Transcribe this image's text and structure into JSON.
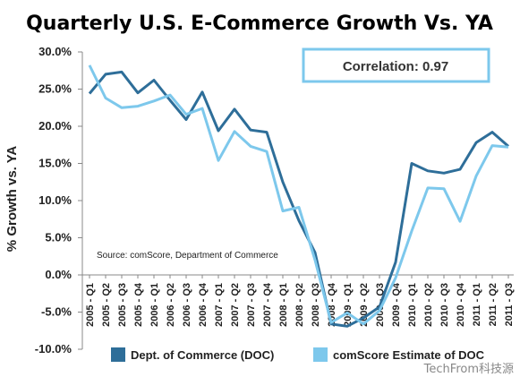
{
  "watermark": "TechFrom科技源",
  "chart_data": {
    "type": "line",
    "title": "Quarterly U.S. E-Commerce Growth Vs. YA",
    "ylabel": "% Growth vs. YA",
    "xlabel": "",
    "ylim": [
      -10,
      30
    ],
    "yticks": [
      "30.0%",
      "25.0%",
      "20.0%",
      "15.0%",
      "10.0%",
      "5.0%",
      "0.0%",
      "-5.0%",
      "-10.0%"
    ],
    "annotation": "Correlation: 0.97",
    "source": "Source: comScore, Department of Commerce",
    "legend_position": "bottom",
    "categories": [
      "2005 - Q1",
      "2005 - Q2",
      "2005 - Q3",
      "2005 - Q4",
      "2006 - Q1",
      "2006 - Q2",
      "2006 - Q3",
      "2006 - Q4",
      "2007 - Q1",
      "2007 - Q2",
      "2007 - Q3",
      "2007 - Q4",
      "2008 - Q1",
      "2008 - Q2",
      "2008 - Q3",
      "2008 - Q4",
      "2009 - Q1",
      "2009 - Q2",
      "2009 - Q3",
      "2009 - Q4",
      "2010 - Q1",
      "2010 - Q2",
      "2010 - Q3",
      "2010 - Q4",
      "2011 - Q1",
      "2011 - Q2",
      "2011 - Q3"
    ],
    "series": [
      {
        "name": "Dept. of Commerce (DOC)",
        "color": "#2e6e99",
        "values": [
          24.4,
          27.0,
          27.3,
          24.5,
          26.2,
          23.5,
          20.9,
          24.6,
          19.4,
          22.3,
          19.5,
          19.2,
          12.5,
          7.3,
          3.0,
          -6.6,
          -6.9,
          -5.8,
          -4.3,
          1.7,
          15.0,
          14.0,
          13.7,
          14.2,
          17.8,
          19.2,
          17.3
        ]
      },
      {
        "name": "comScore Estimate of DOC",
        "color": "#7dc8ec",
        "values": [
          28.2,
          23.8,
          22.5,
          22.7,
          23.4,
          24.2,
          21.6,
          22.4,
          15.4,
          19.3,
          17.3,
          16.6,
          8.6,
          9.1,
          2.0,
          -6.4,
          -5.1,
          -6.6,
          -4.8,
          -0.4,
          5.9,
          11.7,
          11.6,
          7.2,
          13.3,
          17.4,
          17.2
        ]
      }
    ]
  }
}
